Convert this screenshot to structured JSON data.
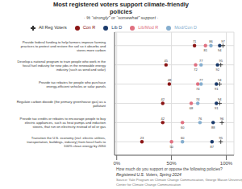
{
  "chart_data": {
    "type": "dot",
    "orientation": "horizontal",
    "title": "Most registered voters support climate-friendly\npolicies",
    "subtitle": "· % “strongly” or “somewhat” support ·",
    "xlabel": "How much do you support or oppose the following policies?",
    "annotations": [
      "Registered U.S. Voters, Spring 2024",
      "Source: Yale Program on Climate Change Communication, George Mason University\nCenter for Climate Change Communication"
    ],
    "categories": [
      "Provide federal funding to help farmers improve farming\npractices to protect and restore the soil so it absorbs and\nstores more carbon",
      "Develop a national program to train people who work in the\nfossil fuel industry for new jobs in the renewable energy\nindustry (such as wind and solar)",
      "Provide tax rebates for people who purchase\nenergy-efficient vehicles or solar panels",
      "Regulate carbon dioxide (the primary greenhouse gas) as a\npollutant",
      "Provide tax credits or rebates to encourage people to buy\nelectric appliances, such as heat pumps and induction\nstoves, that run on electricity instead of oil or gas",
      "Transition the U.S. economy (incl. electric utilities,\ntransportation, buildings, industry) from fossil fuels to\n100% clean energy by 2050"
    ],
    "series": [
      {
        "name": "Con R",
        "color": "#8B1515",
        "marker": "circle",
        "values": [
          71,
          45,
          48,
          42,
          42,
          23
        ]
      },
      {
        "name": "Lib/Mod R",
        "color": "#E07080",
        "marker": "circle",
        "values": [
          81,
          72,
          74,
          68,
          60,
          50
        ]
      },
      {
        "name": "Mod/Con D",
        "color": "#85AECF",
        "marker": "circle",
        "values": [
          86,
          77,
          77,
          74,
          76,
          60
        ]
      },
      {
        "name": "Lib D",
        "color": "#1A3A6B",
        "marker": "circle",
        "values": [
          94,
          92,
          91,
          91,
          88,
          87
        ]
      },
      {
        "name": "All Reg Voters",
        "color": "#333333",
        "marker": "plus",
        "values": [
          97,
          95,
          94,
          94,
          96,
          95
        ]
      }
    ],
    "xlim": [
      -2,
      107
    ],
    "xticks": [
      {
        "value": 0,
        "label": "0%"
      },
      {
        "value": 50,
        "label": "50%"
      },
      {
        "value": 100,
        "label": "100%"
      }
    ],
    "grid": true,
    "legend": "top",
    "data_labels": true
  }
}
